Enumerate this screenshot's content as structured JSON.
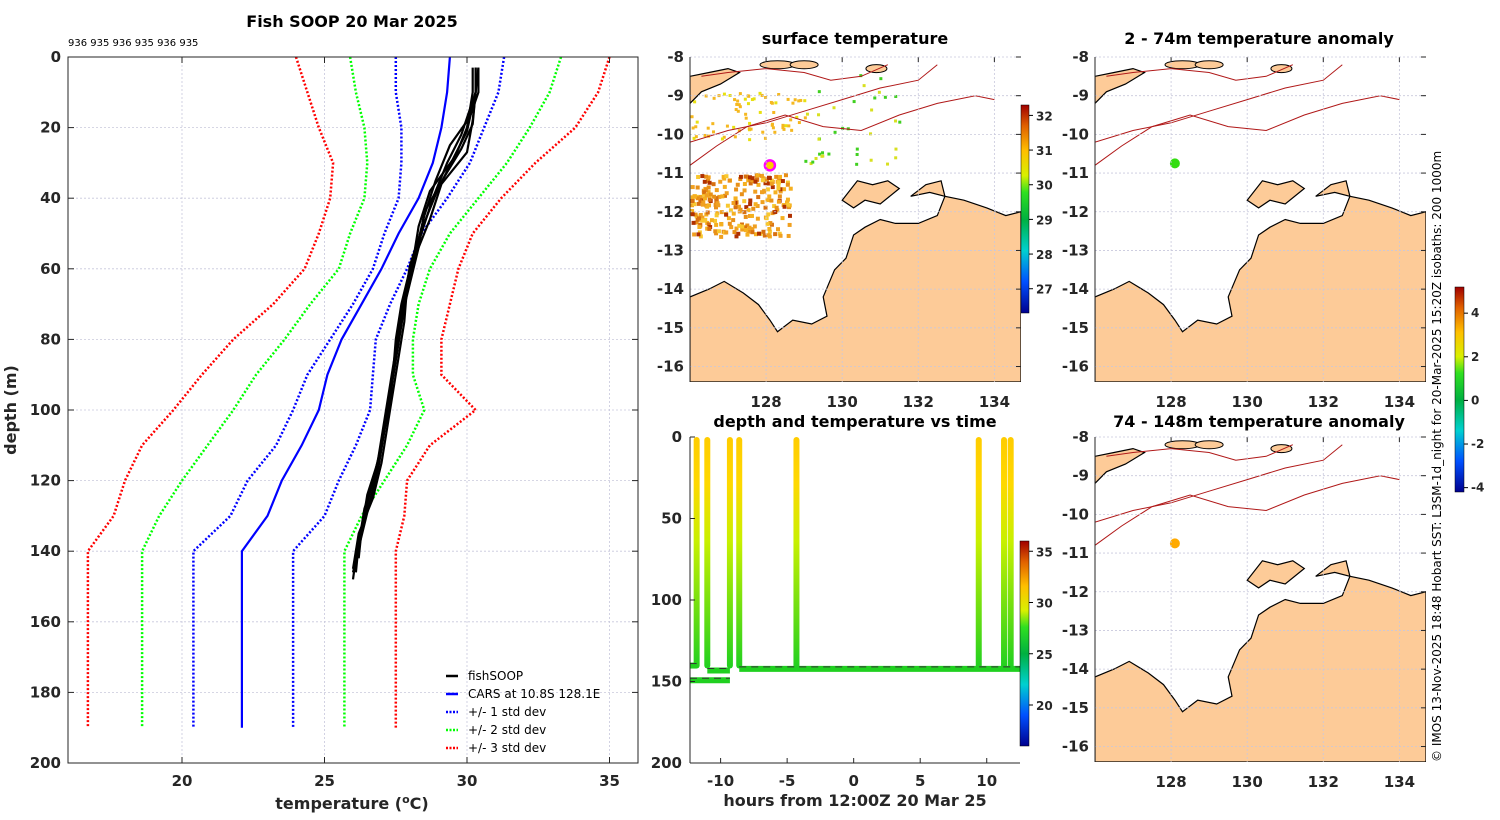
{
  "chart_data": [
    {
      "id": "profile",
      "type": "line",
      "title": "Fish SOOP 20 Mar 2025",
      "top_annotation": "936 935 936 935 936 935",
      "xlabel": "temperature (°C)",
      "xlabel_base": "temperature (",
      "xlabel_sup": "o",
      "xlabel_end": "C)",
      "ylabel": "depth (m)",
      "xlim": [
        16,
        36
      ],
      "ylim": [
        0,
        200
      ],
      "y_reversed": true,
      "xticks": [
        20,
        25,
        30,
        35
      ],
      "yticks": [
        0,
        20,
        40,
        60,
        80,
        100,
        120,
        140,
        160,
        180,
        200
      ],
      "grid": true,
      "legend_position": "bottom-right",
      "depth": [
        0,
        10,
        20,
        30,
        40,
        50,
        60,
        70,
        80,
        90,
        100,
        110,
        120,
        130,
        140,
        150,
        160,
        170,
        180,
        190
      ],
      "series": [
        {
          "name": "fishSOOP",
          "style": "solid",
          "color": "#000000",
          "profiles": [
            {
              "d": [
                3,
                10,
                17,
                25,
                35,
                45,
                55,
                65,
                75,
                85,
                95,
                105,
                115,
                125,
                135,
                145
              ],
              "t": [
                30.4,
                30.4,
                30.1,
                29.4,
                28.9,
                28.5,
                28.2,
                27.9,
                27.8,
                27.6,
                27.4,
                27.2,
                27.0,
                26.7,
                26.2,
                26.0
              ]
            },
            {
              "d": [
                3,
                10,
                18,
                27,
                36,
                46,
                56,
                66,
                76,
                86,
                96,
                106,
                116,
                126,
                136,
                148
              ],
              "t": [
                30.3,
                30.3,
                30.2,
                30.0,
                29.1,
                28.7,
                28.2,
                27.9,
                27.7,
                27.5,
                27.3,
                27.1,
                26.9,
                26.6,
                26.2,
                26.0
              ]
            },
            {
              "d": [
                3,
                10,
                20,
                28,
                38,
                48,
                58,
                68,
                78,
                88,
                98,
                108,
                118,
                128,
                138,
                146
              ],
              "t": [
                30.2,
                30.2,
                30.0,
                29.6,
                28.7,
                28.3,
                28.1,
                27.8,
                27.6,
                27.4,
                27.2,
                27.0,
                26.8,
                26.4,
                26.2,
                26.1
              ]
            },
            {
              "d": [
                3,
                10,
                22,
                30,
                40,
                50,
                60,
                70,
                80,
                90,
                100,
                110,
                120,
                130,
                140,
                144
              ],
              "t": [
                30.3,
                30.3,
                29.8,
                29.3,
                28.8,
                28.4,
                28.0,
                27.7,
                27.5,
                27.4,
                27.2,
                27.0,
                26.7,
                26.4,
                26.1,
                26.1
              ]
            },
            {
              "d": [
                3,
                10,
                19,
                26,
                34,
                44,
                54,
                64,
                74,
                84,
                94,
                104,
                114,
                124,
                134,
                142
              ],
              "t": [
                30.4,
                30.3,
                30.2,
                29.8,
                29.2,
                28.5,
                28.3,
                28.0,
                27.7,
                27.5,
                27.3,
                27.1,
                26.9,
                26.5,
                26.3,
                26.2
              ]
            },
            {
              "d": [
                3,
                10,
                21,
                29,
                39,
                49,
                59,
                69,
                79,
                89,
                99,
                109,
                119,
                129,
                139,
                146
              ],
              "t": [
                30.3,
                30.3,
                30.0,
                29.5,
                28.9,
                28.4,
                28.0,
                27.8,
                27.6,
                27.4,
                27.3,
                27.0,
                26.8,
                26.5,
                26.2,
                26.0
              ]
            }
          ]
        },
        {
          "name": "CARS at 10.8S 128.1E",
          "style": "solid",
          "color": "#0000ff",
          "t": [
            29.4,
            29.3,
            29.1,
            28.8,
            28.3,
            27.6,
            27.0,
            26.3,
            25.6,
            25.1,
            24.8,
            24.2,
            23.5,
            23.0,
            22.1,
            22.1,
            22.1,
            22.1,
            22.1,
            22.1
          ]
        },
        {
          "name": "+/- 1 std dev",
          "style": "dotted",
          "color": "#0000ff",
          "lower": [
            27.5,
            27.5,
            27.7,
            27.7,
            27.6,
            27.1,
            26.7,
            26.0,
            25.2,
            24.4,
            23.9,
            23.3,
            22.3,
            21.7,
            20.4,
            20.4,
            20.4,
            20.4,
            20.4,
            20.4
          ],
          "upper": [
            31.3,
            31.1,
            30.6,
            30.1,
            29.3,
            28.4,
            27.9,
            27.3,
            26.8,
            26.7,
            26.6,
            26.1,
            25.5,
            25.0,
            23.9,
            23.9,
            23.9,
            23.9,
            23.9,
            23.9
          ]
        },
        {
          "name": "+/- 2 std dev",
          "style": "dotted",
          "color": "#00ff00",
          "lower": [
            25.9,
            26.1,
            26.4,
            26.5,
            26.4,
            25.9,
            25.5,
            24.5,
            23.6,
            22.6,
            21.8,
            20.9,
            20.0,
            19.2,
            18.6,
            18.6,
            18.6,
            18.6,
            18.6,
            18.6
          ],
          "upper": [
            33.3,
            32.9,
            32.2,
            31.4,
            30.4,
            29.4,
            28.7,
            28.3,
            28.1,
            28.1,
            28.5,
            27.9,
            27.1,
            26.3,
            25.7,
            25.7,
            25.7,
            25.7,
            25.7,
            25.7
          ]
        },
        {
          "name": "+/- 3 std dev",
          "style": "dotted",
          "color": "#ff0000",
          "lower": [
            24.0,
            24.4,
            24.8,
            25.3,
            25.2,
            24.8,
            24.3,
            23.2,
            21.8,
            20.7,
            19.7,
            18.6,
            18.0,
            17.6,
            16.7,
            16.7,
            16.7,
            16.7,
            16.7,
            16.7
          ],
          "upper": [
            35.0,
            34.6,
            33.8,
            32.4,
            31.2,
            30.2,
            29.7,
            29.4,
            29.1,
            29.1,
            30.3,
            28.7,
            27.9,
            27.8,
            27.5,
            27.5,
            27.5,
            27.5,
            27.5,
            27.5
          ]
        }
      ]
    },
    {
      "id": "surface-temperature",
      "type": "heatmap",
      "title": "surface temperature",
      "xlim": [
        126.0,
        134.7
      ],
      "ylim": [
        -16.4,
        -8.0
      ],
      "xticks": [
        128,
        130,
        132,
        134
      ],
      "yticks": [
        -8,
        -9,
        -10,
        -11,
        -12,
        -13,
        -14,
        -15,
        -16
      ],
      "colorbar": {
        "range": [
          26.3,
          32.3
        ],
        "ticks": [
          27,
          28,
          29,
          30,
          31,
          32
        ]
      },
      "marker": {
        "lon": 128.1,
        "lat": -10.8,
        "color": "#ff00ff"
      }
    },
    {
      "id": "depth-vs-time",
      "type": "scatter",
      "title": "depth and temperature vs time",
      "xlabel": "hours from 12:00Z 20 Mar 25",
      "xlim": [
        -12.3,
        12.5
      ],
      "ylim": [
        0,
        200
      ],
      "y_reversed": true,
      "xticks": [
        -10,
        -5,
        0,
        5,
        10
      ],
      "yticks": [
        0,
        50,
        100,
        150,
        200
      ],
      "colorbar": {
        "range": [
          16,
          36
        ],
        "ticks": [
          20,
          25,
          30,
          35
        ]
      },
      "casts_hours": [
        -11.8,
        -11.0,
        -9.3,
        -8.6,
        -4.3,
        9.4,
        11.3,
        11.8
      ],
      "bottom_track": [
        {
          "x": [
            -12.3,
            -11.8
          ],
          "y": [
            139,
            139
          ]
        },
        {
          "x": [
            -11.0,
            -9.3
          ],
          "y": [
            142,
            142
          ]
        },
        {
          "x": [
            -12.3,
            -9.3
          ],
          "y": [
            148,
            148
          ]
        },
        {
          "x": [
            -8.6,
            12.5
          ],
          "y": [
            141,
            141
          ]
        }
      ]
    },
    {
      "id": "anomaly-2-74",
      "type": "heatmap",
      "title": "2 - 74m temperature anomaly",
      "xlim": [
        126.0,
        134.7
      ],
      "ylim": [
        -16.4,
        -8.0
      ],
      "xticks": [
        128,
        130,
        132,
        134
      ],
      "yticks": [
        -8,
        -9,
        -10,
        -11,
        -12,
        -13,
        -14,
        -15,
        -16
      ],
      "marker": {
        "lon": 128.1,
        "lat": -10.75,
        "anomaly": 0.5,
        "color": "#33dd11"
      }
    },
    {
      "id": "anomaly-74-148",
      "type": "heatmap",
      "title": "74 - 148m temperature anomaly",
      "xlim": [
        126.0,
        134.7
      ],
      "ylim": [
        -16.4,
        -8.0
      ],
      "xticks": [
        128,
        130,
        132,
        134
      ],
      "yticks": [
        -8,
        -9,
        -10,
        -11,
        -12,
        -13,
        -14,
        -15,
        -16
      ],
      "marker": {
        "lon": 128.1,
        "lat": -10.75,
        "anomaly": 2.8,
        "color": "#ffaa00"
      },
      "colorbar": {
        "range": [
          -4.2,
          5.2
        ],
        "ticks": [
          4,
          2,
          0,
          -2,
          -4
        ]
      }
    }
  ],
  "credit": "© IMOS 13-Nov-2025 18:48 Hobart SST: L3SM-1d_night for 20-Mar-2025 15:20Z isobaths: 200  1000m",
  "colors": {
    "land": "#fdcb98",
    "isobath": "#b01818",
    "grid": "#c8c8dc"
  }
}
